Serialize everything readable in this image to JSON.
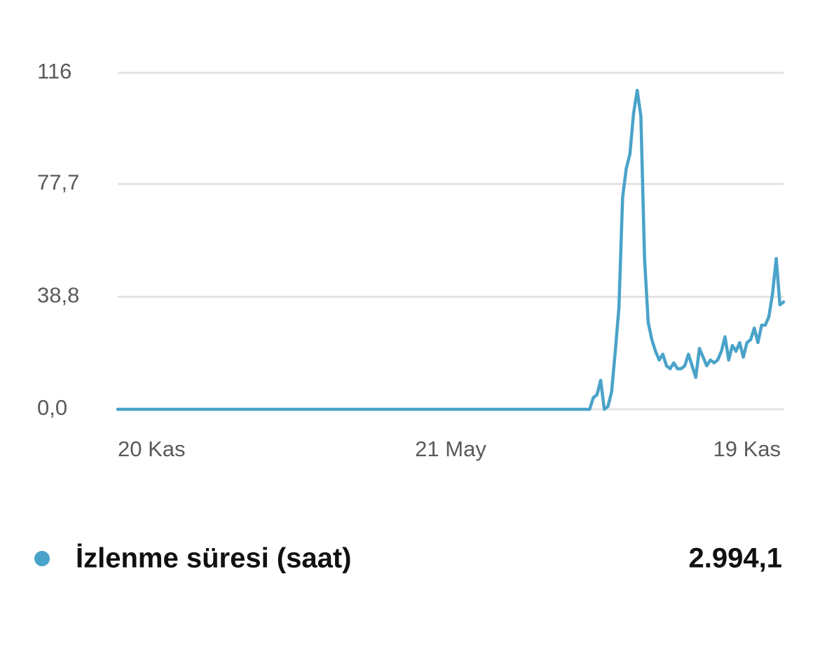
{
  "chart_data": {
    "type": "line",
    "categories": [
      "20 Kas",
      null,
      null,
      null,
      null,
      null,
      null,
      null,
      null,
      null,
      null,
      null,
      null,
      null,
      null,
      null,
      null,
      null,
      null,
      null,
      null,
      null,
      null,
      null,
      null,
      null,
      null,
      null,
      null,
      null,
      null,
      null,
      null,
      null,
      null,
      null,
      null,
      null,
      null,
      null,
      null,
      null,
      null,
      null,
      null,
      null,
      null,
      null,
      null,
      null,
      null,
      null,
      null,
      null,
      null,
      null,
      null,
      null,
      null,
      null,
      null,
      null,
      null,
      null,
      null,
      null,
      null,
      null,
      null,
      null,
      null,
      null,
      null,
      null,
      null,
      null,
      null,
      null,
      null,
      null,
      null,
      null,
      null,
      null,
      null,
      null,
      null,
      null,
      null,
      null,
      null,
      "21 May",
      null,
      null,
      null,
      null,
      null,
      null,
      null,
      null,
      null,
      null,
      null,
      null,
      null,
      null,
      null,
      null,
      null,
      null,
      null,
      null,
      null,
      null,
      null,
      null,
      null,
      null,
      null,
      null,
      null,
      null,
      null,
      null,
      null,
      null,
      null,
      null,
      null,
      null,
      null,
      null,
      null,
      null,
      null,
      null,
      null,
      null,
      null,
      null,
      null,
      null,
      null,
      null,
      null,
      null,
      null,
      null,
      null,
      null,
      null,
      null,
      null,
      null,
      null,
      null,
      null,
      null,
      null,
      null,
      null,
      null,
      null,
      null,
      null,
      null,
      null,
      null,
      null,
      null,
      null,
      null,
      null,
      null,
      null,
      null,
      null,
      null,
      null,
      null,
      null,
      null,
      "19 Kas"
    ],
    "series": [
      {
        "name": "İzlenme süresi (saat)",
        "color": "#4aa3c9",
        "values": [
          0,
          0,
          0,
          0,
          0,
          0,
          0,
          0,
          0,
          0,
          0,
          0,
          0,
          0,
          0,
          0,
          0,
          0,
          0,
          0,
          0,
          0,
          0,
          0,
          0,
          0,
          0,
          0,
          0,
          0,
          0,
          0,
          0,
          0,
          0,
          0,
          0,
          0,
          0,
          0,
          0,
          0,
          0,
          0,
          0,
          0,
          0,
          0,
          0,
          0,
          0,
          0,
          0,
          0,
          0,
          0,
          0,
          0,
          0,
          0,
          0,
          0,
          0,
          0,
          0,
          0,
          0,
          0,
          0,
          0,
          0,
          0,
          0,
          0,
          0,
          0,
          0,
          0,
          0,
          0,
          0,
          0,
          0,
          0,
          0,
          0,
          0,
          0,
          0,
          0,
          0,
          0,
          0,
          0,
          0,
          0,
          0,
          0,
          0,
          0,
          0,
          0,
          0,
          0,
          0,
          0,
          0,
          0,
          0,
          0,
          0,
          0,
          0,
          0,
          0,
          0,
          0,
          0,
          0,
          0,
          0,
          0,
          0,
          0,
          0,
          0,
          0,
          0,
          0,
          0,
          4,
          5,
          10,
          0,
          1,
          6,
          20,
          35,
          73,
          83,
          88,
          102,
          110,
          101,
          52,
          30,
          24,
          20,
          17,
          19,
          15,
          14,
          16,
          14,
          14,
          15,
          19,
          15,
          11,
          21,
          18,
          15,
          17,
          16,
          17,
          20,
          25,
          17,
          22,
          20,
          23,
          18,
          23,
          24,
          28,
          23,
          29,
          29,
          32,
          40,
          52,
          36,
          37
        ]
      }
    ],
    "ylim": [
      0,
      116
    ],
    "yticks": [
      {
        "value": 0,
        "label": "0,0"
      },
      {
        "value": 38.8,
        "label": "38,8"
      },
      {
        "value": 77.7,
        "label": "77,7"
      },
      116
    ],
    "grid": true,
    "total": {
      "value": 2994.1,
      "label": "2.994,1"
    }
  }
}
